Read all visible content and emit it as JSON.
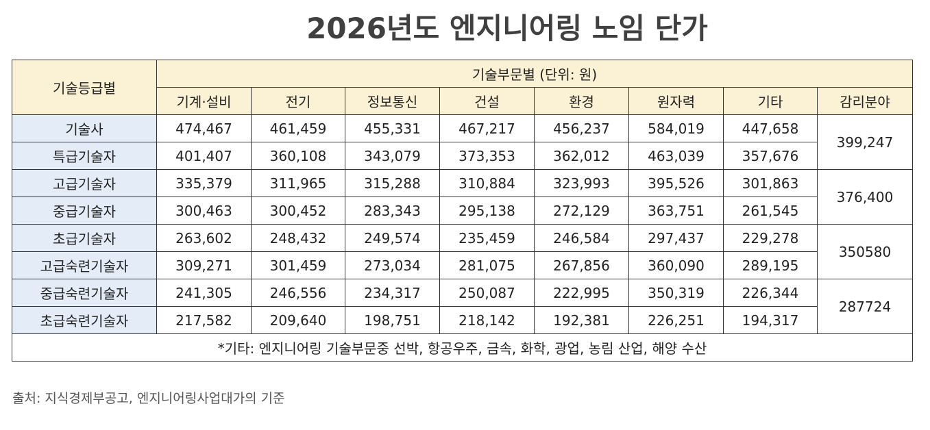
{
  "title": "2026년도 엔지니어링 노임 단가",
  "table": {
    "corner": "기술등급별",
    "group_header": "기술부문별 (단위: 원)",
    "columns": [
      "기계·설비",
      "전기",
      "정보통신",
      "건설",
      "환경",
      "원자력",
      "기타",
      "감리분야"
    ],
    "rows": [
      {
        "grade": "기술사",
        "values": [
          "474,467",
          "461,459",
          "455,331",
          "467,217",
          "456,237",
          "584,019",
          "447,658"
        ]
      },
      {
        "grade": "특급기술자",
        "values": [
          "401,407",
          "360,108",
          "343,079",
          "373,353",
          "362,012",
          "463,039",
          "357,676"
        ]
      },
      {
        "grade": "고급기술자",
        "values": [
          "335,379",
          "311,965",
          "315,288",
          "310,884",
          "323,993",
          "395,526",
          "301,863"
        ]
      },
      {
        "grade": "중급기술자",
        "values": [
          "300,463",
          "300,452",
          "283,343",
          "295,138",
          "272,129",
          "363,751",
          "261,545"
        ]
      },
      {
        "grade": "초급기술자",
        "values": [
          "263,602",
          "248,432",
          "249,574",
          "235,459",
          "246,584",
          "297,437",
          "229,278"
        ]
      },
      {
        "grade": "고급숙련기술자",
        "values": [
          "309,271",
          "301,459",
          "273,034",
          "281,075",
          "267,856",
          "360,090",
          "289,195"
        ]
      },
      {
        "grade": "중급숙련기술자",
        "values": [
          "241,305",
          "246,556",
          "234,317",
          "250,087",
          "222,995",
          "350,319",
          "226,344"
        ]
      },
      {
        "grade": "초급숙련기술자",
        "values": [
          "217,582",
          "209,640",
          "198,751",
          "218,142",
          "192,381",
          "226,251",
          "194,317"
        ]
      }
    ],
    "supervision": [
      "399,247",
      "376,400",
      "350580",
      "287724"
    ],
    "footnote": "*기타: 엔지니어링 기술부문중 선박, 항공우주, 금속, 화학, 광업, 농림 산업, 해양 수산"
  },
  "source": "출처:  지식경제부공고, 엔지니어링사업대가의 기준"
}
